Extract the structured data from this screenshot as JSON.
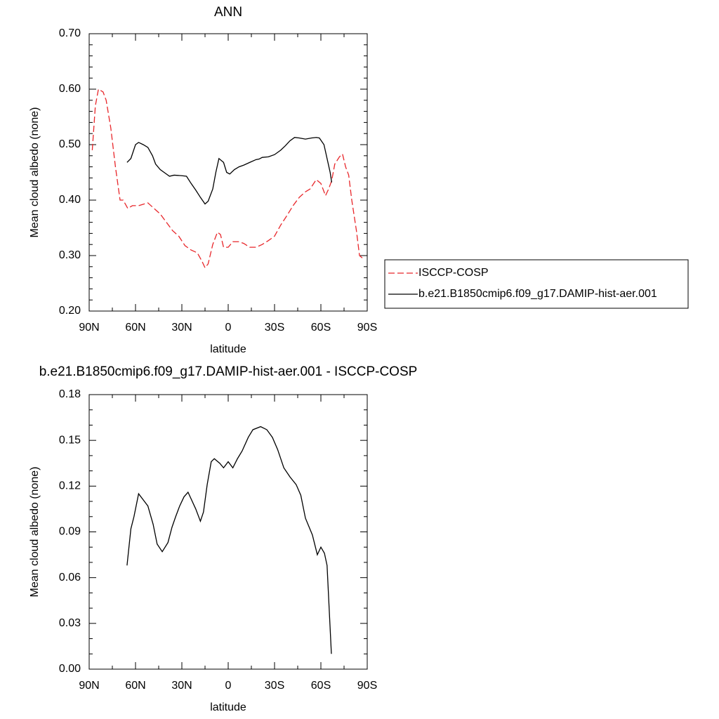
{
  "chart_data": [
    {
      "type": "line",
      "title": "ANN",
      "xlabel": "latitude",
      "ylabel": "Mean cloud albedo (none)",
      "xlim": [
        90,
        -90
      ],
      "xticks": [
        {
          "value": 90,
          "label": "90N"
        },
        {
          "value": 60,
          "label": "60N"
        },
        {
          "value": 30,
          "label": "30N"
        },
        0,
        {
          "value": -30,
          "label": "30S"
        },
        {
          "value": -60,
          "label": "60S"
        },
        {
          "value": -90,
          "label": "90S"
        }
      ],
      "ylim": [
        0.2,
        0.7
      ],
      "yticks": [
        {
          "value": 0.2,
          "label": "0.20"
        },
        {
          "value": 0.3,
          "label": "0.30"
        },
        {
          "value": 0.4,
          "label": "0.40"
        },
        {
          "value": 0.5,
          "label": "0.50"
        },
        {
          "value": 0.6,
          "label": "0.60"
        },
        {
          "value": 0.7,
          "label": "0.70"
        }
      ],
      "legend": "right",
      "series": [
        {
          "name": "ISCCP-COSP",
          "color": "#e8262a",
          "dash": "dashed",
          "x": [
            88,
            86,
            84,
            81,
            79,
            76,
            73,
            70,
            68,
            65,
            62,
            58,
            52,
            48,
            44,
            40,
            36,
            32,
            28,
            24,
            20,
            17,
            15,
            13,
            10,
            7,
            5,
            3,
            0,
            -3,
            -7,
            -10,
            -14,
            -18,
            -22,
            -26,
            -30,
            -34,
            -38,
            -42,
            -46,
            -50,
            -53,
            -57,
            -60,
            -63,
            -65,
            -67,
            -69,
            -72,
            -74,
            -76,
            -78,
            -80,
            -83,
            -85,
            -88
          ],
          "values": [
            0.49,
            0.57,
            0.6,
            0.595,
            0.58,
            0.53,
            0.46,
            0.4,
            0.4,
            0.385,
            0.39,
            0.39,
            0.395,
            0.385,
            0.375,
            0.36,
            0.345,
            0.335,
            0.318,
            0.31,
            0.305,
            0.29,
            0.278,
            0.285,
            0.32,
            0.342,
            0.338,
            0.315,
            0.315,
            0.325,
            0.325,
            0.322,
            0.315,
            0.315,
            0.32,
            0.327,
            0.335,
            0.355,
            0.372,
            0.39,
            0.405,
            0.415,
            0.42,
            0.437,
            0.43,
            0.408,
            0.42,
            0.435,
            0.465,
            0.478,
            0.483,
            0.46,
            0.445,
            0.4,
            0.345,
            0.3,
            0.293
          ]
        },
        {
          "name": "b.e21.B1850cmip6.f09_g17.DAMIP-hist-aer.001",
          "color": "#000000",
          "dash": "solid",
          "x": [
            65.5,
            63,
            60,
            58,
            55,
            52,
            49,
            47,
            44,
            40,
            38,
            35,
            30,
            27,
            24,
            21,
            18,
            15,
            13,
            10,
            8,
            6,
            3,
            1,
            -1,
            -4,
            -7,
            -10,
            -14,
            -18,
            -20,
            -22,
            -26,
            -30,
            -34,
            -37,
            -40,
            -43,
            -46,
            -50,
            -54,
            -57,
            -59,
            -62,
            -64,
            -66,
            -67
          ],
          "values": [
            0.468,
            0.475,
            0.5,
            0.504,
            0.5,
            0.495,
            0.48,
            0.465,
            0.455,
            0.447,
            0.443,
            0.445,
            0.444,
            0.443,
            0.43,
            0.418,
            0.405,
            0.393,
            0.398,
            0.42,
            0.45,
            0.475,
            0.468,
            0.45,
            0.447,
            0.455,
            0.46,
            0.463,
            0.468,
            0.473,
            0.474,
            0.477,
            0.478,
            0.482,
            0.49,
            0.498,
            0.507,
            0.513,
            0.512,
            0.51,
            0.512,
            0.513,
            0.512,
            0.5,
            0.475,
            0.45,
            0.432
          ]
        }
      ]
    },
    {
      "type": "line",
      "title": "b.e21.B1850cmip6.f09_g17.DAMIP-hist-aer.001 - ISCCP-COSP",
      "xlabel": "latitude",
      "ylabel": "Mean cloud albedo (none)",
      "xlim": [
        90,
        -90
      ],
      "xticks": [
        {
          "value": 90,
          "label": "90N"
        },
        {
          "value": 60,
          "label": "60N"
        },
        {
          "value": 30,
          "label": "30N"
        },
        0,
        {
          "value": -30,
          "label": "30S"
        },
        {
          "value": -60,
          "label": "60S"
        },
        {
          "value": -90,
          "label": "90S"
        }
      ],
      "ylim": [
        0,
        0.18
      ],
      "yticks": [
        {
          "value": 0,
          "label": "0.00"
        },
        0.03,
        0.06,
        0.09,
        0.12,
        0.15,
        0.18
      ],
      "series": [
        {
          "color": "#000000",
          "dash": "solid",
          "x": [
            65.5,
            63,
            61,
            58,
            55,
            52,
            48.6,
            46,
            42.7,
            39,
            36.4,
            34,
            31.4,
            28.6,
            26,
            21,
            18,
            16,
            13.6,
            11,
            9,
            5.5,
            3,
            0,
            -3,
            -6,
            -9,
            -13,
            -16,
            -21,
            -25,
            -28.6,
            -32,
            -36,
            -40,
            -44,
            -47,
            -50,
            -54.5,
            -57.7,
            -60,
            -62.3,
            -64,
            -66.8
          ],
          "values": [
            0.068,
            0.092,
            0.1,
            0.115,
            0.111,
            0.107,
            0.095,
            0.082,
            0.077,
            0.083,
            0.093,
            0.1,
            0.107,
            0.113,
            0.116,
            0.105,
            0.097,
            0.103,
            0.121,
            0.136,
            0.138,
            0.135,
            0.132,
            0.136,
            0.132,
            0.138,
            0.143,
            0.152,
            0.157,
            0.159,
            0.157,
            0.152,
            0.144,
            0.132,
            0.126,
            0.121,
            0.114,
            0.099,
            0.088,
            0.075,
            0.08,
            0.076,
            0.068,
            0.01
          ]
        }
      ]
    }
  ]
}
